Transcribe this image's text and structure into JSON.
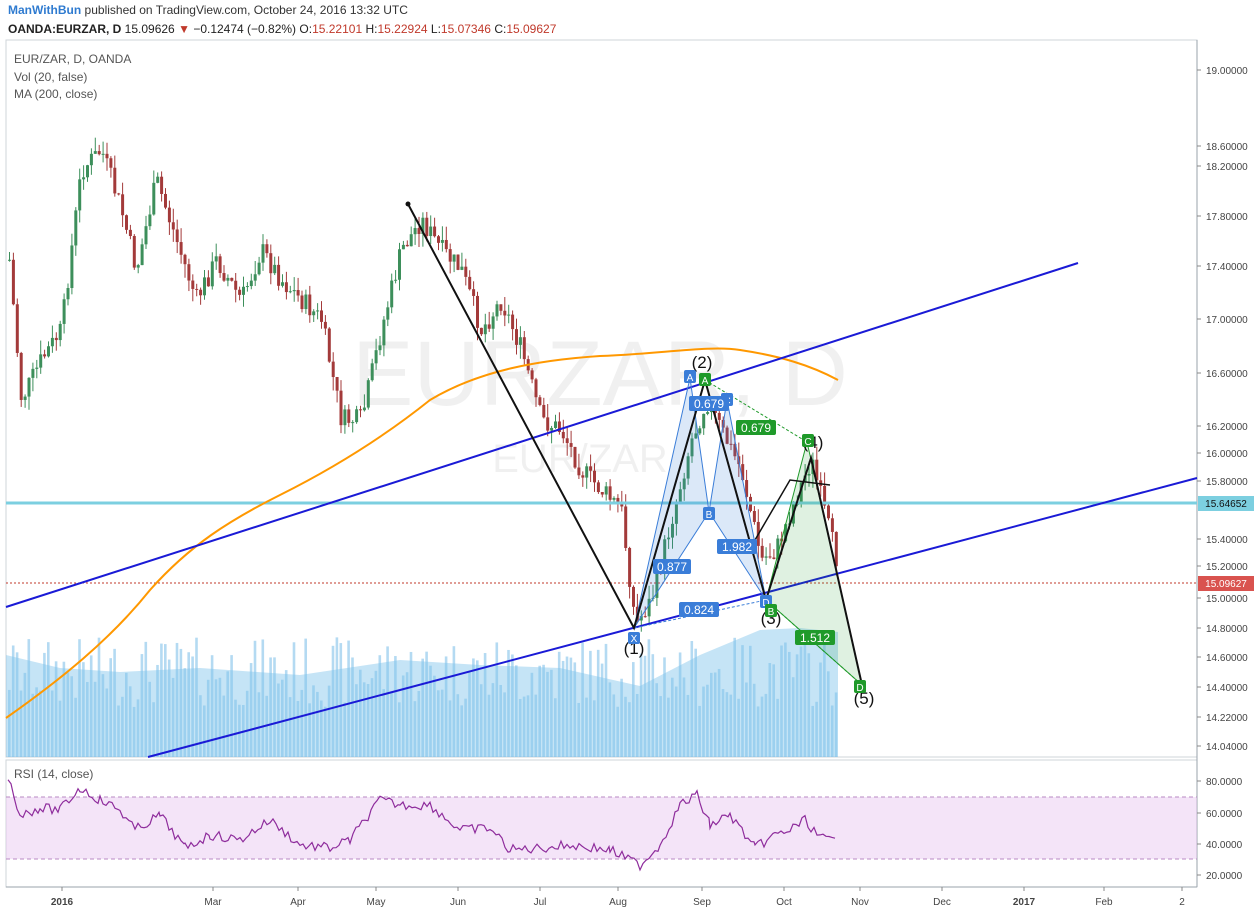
{
  "header": {
    "author": "ManWithBun",
    "published": " published on TradingView.com, October 24, 2016 13:32 UTC",
    "symbol": "OANDA:EURZAR, D",
    "last": "15.09626",
    "change": "−0.12474 (−0.82%)",
    "open_label": "O:",
    "open": "15.22101",
    "high_label": "H:",
    "high": "15.22924",
    "low_label": "L:",
    "low": "15.07346",
    "close_label": "C:",
    "close": "15.09627"
  },
  "legend": {
    "title": "EUR/ZAR, D, OANDA",
    "vol": "Vol (20, false)",
    "ma": "MA (200, close)",
    "rsi": "RSI (14, close)"
  },
  "watermark": {
    "big": "EURZAR, D",
    "small": "EUR/ZAR"
  },
  "chart_data": {
    "type": "candlestick",
    "symbol": "EURZAR",
    "timeframe": "D",
    "y_ticks": [
      "19.00000",
      "18.60000",
      "18.20000",
      "17.80000",
      "17.40000",
      "17.00000",
      "16.60000",
      "16.20000",
      "16.00000",
      "15.80000",
      "15.40000",
      "15.20000",
      "15.00000",
      "14.80000",
      "14.60000",
      "14.40000",
      "14.22000",
      "14.04000"
    ],
    "price_labels": {
      "horizontal_level": "15.64652",
      "last_price": "15.09627"
    },
    "x_ticks": [
      "2016",
      "Mar",
      "Apr",
      "May",
      "Jun",
      "Jul",
      "Aug",
      "Sep",
      "Oct",
      "Nov",
      "Dec",
      "2017",
      "Feb",
      "2"
    ],
    "rsi_ticks": [
      "80.0000",
      "60.0000",
      "40.0000",
      "20.0000"
    ],
    "rsi_band": [
      30,
      70
    ],
    "elliott_labels": [
      "(1)",
      "(2)",
      "(3)",
      "(4)",
      "(5)"
    ],
    "harmonic_points": [
      "X",
      "A",
      "B",
      "C",
      "D"
    ],
    "ratios": [
      "0.877",
      "0.824",
      "1.982",
      "0.679",
      "1.512",
      "0.679"
    ],
    "colors": {
      "up": "#3d8f5b",
      "down": "#a33a3a",
      "ma": "#ff9800",
      "channel": "#1a1ad6",
      "level": "#7ccfe0",
      "rsi": "#8e2c9c",
      "pattern_blue": "#3a7dd8",
      "pattern_green": "#1f9a2a",
      "volume": "#76bce8"
    }
  }
}
